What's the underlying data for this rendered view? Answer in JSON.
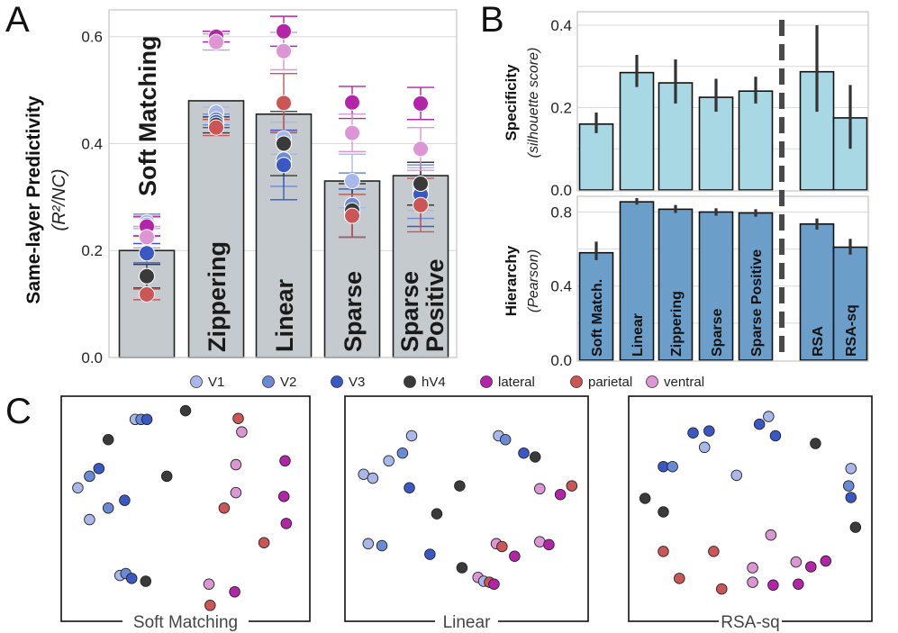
{
  "colors": {
    "bar_a": "#c4cacd",
    "bar_spec": "#a9d8e5",
    "bar_hier": "#6b9ec8",
    "V1": "#a9b8ea",
    "V2": "#6a8ad6",
    "V3": "#3a58c4",
    "hV4": "#3a3a3a",
    "lateral": "#b424a8",
    "parietal": "#cc5656",
    "ventral": "#dc96d4"
  },
  "legend": [
    "V1",
    "V2",
    "V3",
    "hV4",
    "lateral",
    "parietal",
    "ventral"
  ],
  "panel_labels": {
    "a": "A",
    "b": "B",
    "c": "C"
  },
  "chart_data": [
    {
      "id": "A",
      "type": "bar",
      "ylabel": "Same-layer Predictivity",
      "ylabel_sub": "(R²/NC)",
      "ylim": [
        0,
        0.65
      ],
      "yticks": [
        0.0,
        0.2,
        0.4,
        0.6
      ],
      "yticklabels": [
        "0.0",
        "0.2",
        "0.4",
        "0.6"
      ],
      "categories": [
        "Soft Matching",
        "Zippering",
        "Linear",
        "Sparse",
        "Sparse Positive"
      ],
      "bar_labels": [
        [
          "Soft  Matching"
        ],
        [
          "Zippering"
        ],
        [
          "Linear"
        ],
        [
          "Sparse"
        ],
        [
          "Sparse",
          "Positive"
        ]
      ],
      "values": [
        0.2,
        0.48,
        0.455,
        0.33,
        0.34
      ],
      "points": [
        [
          {
            "roi": "V1",
            "value": 0.253,
            "err": 0.012
          },
          {
            "roi": "V2",
            "value": 0.248,
            "err": 0.02
          },
          {
            "roi": "V3",
            "value": 0.195,
            "err": 0.018
          },
          {
            "roi": "hV4",
            "value": 0.152,
            "err": 0.022
          },
          {
            "roi": "lateral",
            "value": 0.245,
            "err": 0.018
          },
          {
            "roi": "parietal",
            "value": 0.118,
            "err": 0.01
          },
          {
            "roi": "ventral",
            "value": 0.225,
            "err": 0.02
          }
        ],
        [
          {
            "roi": "V1",
            "value": 0.458,
            "err": 0.01
          },
          {
            "roi": "V2",
            "value": 0.445,
            "err": 0.01
          },
          {
            "roi": "V3",
            "value": 0.44,
            "err": 0.01
          },
          {
            "roi": "hV4",
            "value": 0.435,
            "err": 0.015
          },
          {
            "roi": "lateral",
            "value": 0.6,
            "err": 0.01
          },
          {
            "roi": "parietal",
            "value": 0.43,
            "err": 0.015
          },
          {
            "roi": "ventral",
            "value": 0.59,
            "err": 0.015
          }
        ],
        [
          {
            "roi": "V1",
            "value": 0.41,
            "err": 0.03
          },
          {
            "roi": "V2",
            "value": 0.37,
            "err": 0.05
          },
          {
            "roi": "V3",
            "value": 0.36,
            "err": 0.065
          },
          {
            "roi": "hV4",
            "value": 0.4,
            "err": 0.06
          },
          {
            "roi": "lateral",
            "value": 0.61,
            "err": 0.028
          },
          {
            "roi": "parietal",
            "value": 0.476,
            "err": 0.055
          },
          {
            "roi": "ventral",
            "value": 0.573,
            "err": 0.035
          }
        ],
        [
          {
            "roi": "V1",
            "value": 0.33,
            "err": 0.05
          },
          {
            "roi": "V2",
            "value": 0.285,
            "err": 0.06
          },
          {
            "roi": "V3",
            "value": 0.27,
            "err": 0.045
          },
          {
            "roi": "hV4",
            "value": 0.275,
            "err": 0.05
          },
          {
            "roi": "lateral",
            "value": 0.477,
            "err": 0.03
          },
          {
            "roi": "parietal",
            "value": 0.265,
            "err": 0.04
          },
          {
            "roi": "ventral",
            "value": 0.42,
            "err": 0.035
          }
        ],
        [
          {
            "roi": "V1",
            "value": 0.315,
            "err": 0.04
          },
          {
            "roi": "V2",
            "value": 0.31,
            "err": 0.05
          },
          {
            "roi": "V3",
            "value": 0.305,
            "err": 0.06
          },
          {
            "roi": "hV4",
            "value": 0.325,
            "err": 0.04
          },
          {
            "roi": "lateral",
            "value": 0.475,
            "err": 0.03
          },
          {
            "roi": "parietal",
            "value": 0.285,
            "err": 0.05
          },
          {
            "roi": "ventral",
            "value": 0.39,
            "err": 0.04
          }
        ]
      ]
    },
    {
      "id": "B-specificity",
      "type": "bar",
      "ylabel": "Specificity",
      "ylabel_sub": "(silhouette score)",
      "ylim": [
        0,
        0.4
      ],
      "yticks": [
        0.0,
        0.2,
        0.4
      ],
      "yticklabels": [
        "0.0",
        "0.2",
        "0.4"
      ],
      "categories": [
        "Soft Match.",
        "Linear",
        "Zippering",
        "Sparse",
        "Sparse Positive",
        "RSA",
        "RSA-sq"
      ],
      "values": [
        0.16,
        0.285,
        0.26,
        0.225,
        0.24,
        0.287,
        0.175
      ],
      "errors": [
        [
          0.138,
          0.188
        ],
        [
          0.25,
          0.328
        ],
        [
          0.21,
          0.317
        ],
        [
          0.19,
          0.27
        ],
        [
          0.21,
          0.275
        ],
        [
          0.19,
          0.4
        ],
        [
          0.1,
          0.255
        ]
      ],
      "separator_after": 4
    },
    {
      "id": "B-hierarchy",
      "type": "bar",
      "ylabel": "Hierarchy",
      "ylabel_sub": "(Pearson)",
      "ylim": [
        0,
        0.88
      ],
      "yticks": [
        0.0,
        0.4,
        0.8
      ],
      "yticklabels": [
        "0.0",
        "0.4",
        "0.8"
      ],
      "categories": [
        "Soft Match.",
        "Linear",
        "Zippering",
        "Sparse",
        "Sparse Positive",
        "RSA",
        "RSA-sq"
      ],
      "values": [
        0.58,
        0.855,
        0.815,
        0.8,
        0.795,
        0.735,
        0.61
      ],
      "errors": [
        [
          0.54,
          0.64
        ],
        [
          0.84,
          0.875
        ],
        [
          0.795,
          0.838
        ],
        [
          0.78,
          0.82
        ],
        [
          0.775,
          0.815
        ],
        [
          0.705,
          0.765
        ],
        [
          0.57,
          0.655
        ]
      ],
      "separator_after": 4
    },
    {
      "id": "C",
      "type": "scatter",
      "panels": [
        {
          "title": "Soft Matching",
          "points": [
            {
              "roi": "V1",
              "x": 0.285,
              "y": 0.945
            },
            {
              "roi": "V2",
              "x": 0.31,
              "y": 0.945
            },
            {
              "roi": "V3",
              "x": 0.335,
              "y": 0.945
            },
            {
              "roi": "hV4",
              "x": 0.5,
              "y": 0.99
            },
            {
              "roi": "parietal",
              "x": 0.725,
              "y": 0.95
            },
            {
              "roi": "ventral",
              "x": 0.74,
              "y": 0.88
            },
            {
              "roi": "hV4",
              "x": 0.17,
              "y": 0.84
            },
            {
              "roi": "lateral",
              "x": 0.925,
              "y": 0.73
            },
            {
              "roi": "ventral",
              "x": 0.715,
              "y": 0.71
            },
            {
              "roi": "V3",
              "x": 0.13,
              "y": 0.69
            },
            {
              "roi": "V2",
              "x": 0.09,
              "y": 0.65
            },
            {
              "roi": "hV4",
              "x": 0.42,
              "y": 0.65
            },
            {
              "roi": "V1",
              "x": 0.04,
              "y": 0.59
            },
            {
              "roi": "ventral",
              "x": 0.715,
              "y": 0.565
            },
            {
              "roi": "lateral",
              "x": 0.92,
              "y": 0.545
            },
            {
              "roi": "V3",
              "x": 0.24,
              "y": 0.525
            },
            {
              "roi": "V2",
              "x": 0.17,
              "y": 0.485
            },
            {
              "roi": "parietal",
              "x": 0.665,
              "y": 0.485
            },
            {
              "roi": "V1",
              "x": 0.09,
              "y": 0.425
            },
            {
              "roi": "lateral",
              "x": 0.93,
              "y": 0.405
            },
            {
              "roi": "parietal",
              "x": 0.835,
              "y": 0.305
            },
            {
              "roi": "V1",
              "x": 0.22,
              "y": 0.135
            },
            {
              "roi": "V2",
              "x": 0.245,
              "y": 0.145
            },
            {
              "roi": "V3",
              "x": 0.27,
              "y": 0.12
            },
            {
              "roi": "hV4",
              "x": 0.33,
              "y": 0.105
            },
            {
              "roi": "ventral",
              "x": 0.6,
              "y": 0.09
            },
            {
              "roi": "lateral",
              "x": 0.71,
              "y": 0.05
            },
            {
              "roi": "parietal",
              "x": 0.605,
              "y": -0.02
            }
          ]
        },
        {
          "title": "Linear",
          "points": [
            {
              "roi": "V1",
              "x": 0.26,
              "y": 0.86
            },
            {
              "roi": "V1",
              "x": 0.64,
              "y": 0.86
            },
            {
              "roi": "V2",
              "x": 0.67,
              "y": 0.84
            },
            {
              "roi": "V3",
              "x": 0.75,
              "y": 0.77
            },
            {
              "roi": "hV4",
              "x": 0.8,
              "y": 0.75
            },
            {
              "roi": "V2",
              "x": 0.22,
              "y": 0.77
            },
            {
              "roi": "V1",
              "x": 0.16,
              "y": 0.73
            },
            {
              "roi": "V1",
              "x": 0.05,
              "y": 0.66
            },
            {
              "roi": "V1",
              "x": 0.09,
              "y": 0.64
            },
            {
              "roi": "V3",
              "x": 0.25,
              "y": 0.59
            },
            {
              "roi": "hV4",
              "x": 0.47,
              "y": 0.6
            },
            {
              "roi": "ventral",
              "x": 0.82,
              "y": 0.585
            },
            {
              "roi": "parietal",
              "x": 0.96,
              "y": 0.6
            },
            {
              "roi": "lateral",
              "x": 0.91,
              "y": 0.555
            },
            {
              "roi": "hV4",
              "x": 0.37,
              "y": 0.455
            },
            {
              "roi": "V1",
              "x": 0.07,
              "y": 0.3
            },
            {
              "roi": "V2",
              "x": 0.13,
              "y": 0.29
            },
            {
              "roi": "V3",
              "x": 0.34,
              "y": 0.245
            },
            {
              "roi": "ventral",
              "x": 0.82,
              "y": 0.31
            },
            {
              "roi": "lateral",
              "x": 0.86,
              "y": 0.295
            },
            {
              "roi": "ventral",
              "x": 0.63,
              "y": 0.3
            },
            {
              "roi": "parietal",
              "x": 0.655,
              "y": 0.285
            },
            {
              "roi": "lateral",
              "x": 0.71,
              "y": 0.235
            },
            {
              "roi": "hV4",
              "x": 0.48,
              "y": 0.175
            },
            {
              "roi": "ventral",
              "x": 0.55,
              "y": 0.125
            },
            {
              "roi": "V1",
              "x": 0.575,
              "y": 0.105
            },
            {
              "roi": "parietal",
              "x": 0.6,
              "y": 0.1
            },
            {
              "roi": "lateral",
              "x": 0.62,
              "y": 0.09
            }
          ]
        },
        {
          "title": "RSA-sq",
          "points": [
            {
              "roi": "V1",
              "x": 0.58,
              "y": 0.96
            },
            {
              "roi": "V3",
              "x": 0.54,
              "y": 0.92
            },
            {
              "roi": "V3",
              "x": 0.61,
              "y": 0.86
            },
            {
              "roi": "hV4",
              "x": 0.785,
              "y": 0.82
            },
            {
              "roi": "V3",
              "x": 0.25,
              "y": 0.875
            },
            {
              "roi": "V3",
              "x": 0.32,
              "y": 0.885
            },
            {
              "roi": "V1",
              "x": 0.3,
              "y": 0.8
            },
            {
              "roi": "V3",
              "x": 0.12,
              "y": 0.7
            },
            {
              "roi": "V2",
              "x": 0.16,
              "y": 0.7
            },
            {
              "roi": "V1",
              "x": 0.44,
              "y": 0.655
            },
            {
              "roi": "V1",
              "x": 0.94,
              "y": 0.69
            },
            {
              "roi": "V2",
              "x": 0.93,
              "y": 0.6
            },
            {
              "roi": "V3",
              "x": 0.94,
              "y": 0.54
            },
            {
              "roi": "hV4",
              "x": 0.04,
              "y": 0.535
            },
            {
              "roi": "hV4",
              "x": 0.12,
              "y": 0.465
            },
            {
              "roi": "hV4",
              "x": 0.96,
              "y": 0.385
            },
            {
              "roi": "ventral",
              "x": 0.59,
              "y": 0.345
            },
            {
              "roi": "parietal",
              "x": 0.12,
              "y": 0.26
            },
            {
              "roi": "parietal",
              "x": 0.34,
              "y": 0.26
            },
            {
              "roi": "ventral",
              "x": 0.7,
              "y": 0.205
            },
            {
              "roi": "lateral",
              "x": 0.83,
              "y": 0.21
            },
            {
              "roi": "lateral",
              "x": 0.765,
              "y": 0.18
            },
            {
              "roi": "ventral",
              "x": 0.51,
              "y": 0.175
            },
            {
              "roi": "parietal",
              "x": 0.19,
              "y": 0.12
            },
            {
              "roi": "ventral",
              "x": 0.51,
              "y": 0.1
            },
            {
              "roi": "lateral",
              "x": 0.6,
              "y": 0.085
            },
            {
              "roi": "lateral",
              "x": 0.71,
              "y": 0.09
            },
            {
              "roi": "parietal",
              "x": 0.375,
              "y": 0.065
            }
          ]
        }
      ]
    }
  ]
}
